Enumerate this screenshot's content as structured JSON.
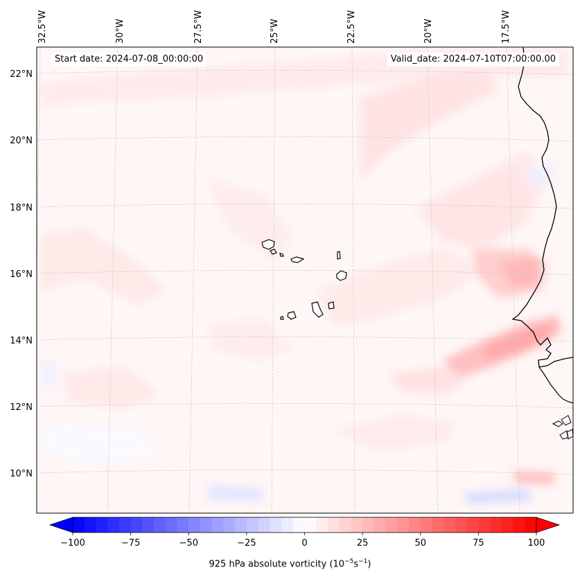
{
  "map": {
    "start_date_text": "Start date: 2024-07-08_00:00:00",
    "valid_date_text": "Valid_date: 2024-07-10T07:00:00.00",
    "lon_labels": [
      "32.5°W",
      "30°W",
      "27.5°W",
      "25°W",
      "22.5°W",
      "20°W",
      "17.5°W"
    ],
    "lat_labels": [
      "22°N",
      "20°N",
      "18°N",
      "16°N",
      "14°N",
      "12°N",
      "10°N"
    ]
  },
  "colorbar": {
    "label": "925 hPa absolute vorticity (10",
    "label_exp1": "−5",
    "label_mid": "s",
    "label_exp2": "−1",
    "label_end": ")",
    "tick_labels": [
      "−100",
      "−75",
      "−50",
      "−25",
      "0",
      "25",
      "50",
      "75",
      "100"
    ],
    "colors": {
      "min": "#0000ff",
      "mid": "#ffffff",
      "max": "#ff0000"
    }
  }
}
